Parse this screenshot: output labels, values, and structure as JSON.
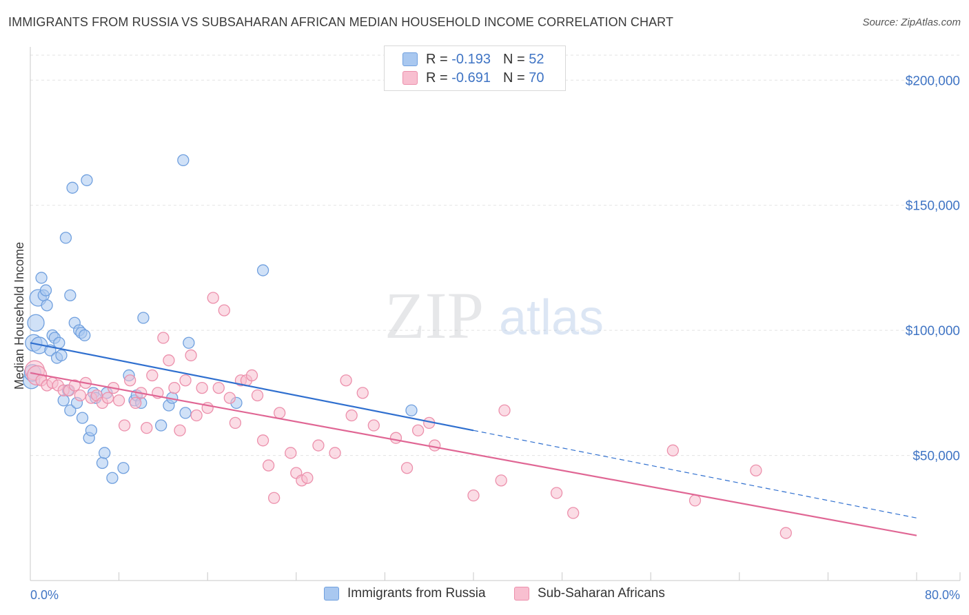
{
  "title": "IMMIGRANTS FROM RUSSIA VS SUBSAHARAN AFRICAN MEDIAN HOUSEHOLD INCOME CORRELATION CHART",
  "source": "Source: ZipAtlas.com",
  "watermark": {
    "zip": "ZIP",
    "atlas": "atlas"
  },
  "legend_top": [
    {
      "r_label": "R =",
      "r_value": "-0.193",
      "n_label": "N =",
      "n_value": "52",
      "color": "#a9c8f0",
      "border": "#6f9fde"
    },
    {
      "r_label": "R =",
      "r_value": "-0.691",
      "n_label": "N =",
      "n_value": "70",
      "color": "#f8bfd0",
      "border": "#ec8fab"
    }
  ],
  "legend_bottom": [
    {
      "label": "Immigrants from Russia",
      "color": "#a9c8f0",
      "border": "#6f9fde"
    },
    {
      "label": "Sub-Saharan Africans",
      "color": "#f8bfd0",
      "border": "#ec8fab"
    }
  ],
  "chart_data": {
    "type": "scatter",
    "xlabel": "",
    "ylabel": "Median Household Income",
    "xlim": [
      0,
      80
    ],
    "ylim": [
      0,
      210000
    ],
    "x_tick_labels": [
      "0.0%",
      "80.0%"
    ],
    "y_ticks": [
      50000,
      100000,
      150000,
      200000
    ],
    "y_tick_labels": [
      "$50,000",
      "$100,000",
      "$150,000",
      "$200,000"
    ],
    "grid": true,
    "series": [
      {
        "name": "Immigrants from Russia",
        "color": "#6f9fde",
        "fill": "#a9c8f0",
        "line_color": "#2f6fcf",
        "trend": {
          "x0": 0,
          "y0": 95000,
          "x1": 40,
          "y1": 60000,
          "dash_to_x": 80,
          "dash_to_y": 25000
        },
        "points": [
          [
            0.1,
            80000
          ],
          [
            0.3,
            95000
          ],
          [
            0.5,
            103000
          ],
          [
            0.7,
            113000
          ],
          [
            0.8,
            94000
          ],
          [
            1.0,
            121000
          ],
          [
            1.2,
            114000
          ],
          [
            1.4,
            116000
          ],
          [
            1.5,
            110000
          ],
          [
            1.8,
            92000
          ],
          [
            2.0,
            98000
          ],
          [
            2.2,
            97000
          ],
          [
            2.4,
            89000
          ],
          [
            2.6,
            95000
          ],
          [
            2.8,
            90000
          ],
          [
            3.0,
            72000
          ],
          [
            3.2,
            137000
          ],
          [
            3.4,
            76000
          ],
          [
            3.6,
            114000
          ],
          [
            3.6,
            68000
          ],
          [
            3.8,
            157000
          ],
          [
            4.0,
            103000
          ],
          [
            4.2,
            71000
          ],
          [
            4.4,
            100000
          ],
          [
            4.6,
            99000
          ],
          [
            4.7,
            65000
          ],
          [
            4.9,
            98000
          ],
          [
            5.1,
            160000
          ],
          [
            5.3,
            57000
          ],
          [
            5.5,
            60000
          ],
          [
            5.7,
            75000
          ],
          [
            5.9,
            73000
          ],
          [
            6.5,
            47000
          ],
          [
            6.7,
            51000
          ],
          [
            6.9,
            75000
          ],
          [
            7.4,
            41000
          ],
          [
            8.4,
            45000
          ],
          [
            8.9,
            82000
          ],
          [
            9.4,
            72000
          ],
          [
            9.6,
            74000
          ],
          [
            10.0,
            71000
          ],
          [
            10.2,
            105000
          ],
          [
            11.8,
            62000
          ],
          [
            12.5,
            70000
          ],
          [
            12.8,
            73000
          ],
          [
            13.8,
            168000
          ],
          [
            14.0,
            67000
          ],
          [
            14.3,
            95000
          ],
          [
            18.6,
            71000
          ],
          [
            21.0,
            124000
          ],
          [
            34.4,
            68000
          ],
          [
            0.2,
            83000
          ]
        ]
      },
      {
        "name": "Sub-Saharan Africans",
        "color": "#ec8fab",
        "fill": "#f8bfd0",
        "line_color": "#e06694",
        "trend": {
          "x0": 0,
          "y0": 83000,
          "x1": 80,
          "y1": 18000
        },
        "points": [
          [
            0.4,
            84000
          ],
          [
            0.6,
            82000
          ],
          [
            1.0,
            80000
          ],
          [
            1.5,
            78000
          ],
          [
            2.0,
            79000
          ],
          [
            2.5,
            78000
          ],
          [
            3.0,
            76000
          ],
          [
            3.5,
            76000
          ],
          [
            4.0,
            78000
          ],
          [
            4.5,
            74000
          ],
          [
            5.0,
            79000
          ],
          [
            5.5,
            73000
          ],
          [
            6.0,
            74000
          ],
          [
            6.5,
            71000
          ],
          [
            7.0,
            73000
          ],
          [
            7.5,
            77000
          ],
          [
            8.0,
            72000
          ],
          [
            8.5,
            62000
          ],
          [
            9.0,
            80000
          ],
          [
            9.5,
            71000
          ],
          [
            10.0,
            75000
          ],
          [
            10.5,
            61000
          ],
          [
            11.0,
            82000
          ],
          [
            11.5,
            75000
          ],
          [
            12.0,
            97000
          ],
          [
            12.5,
            88000
          ],
          [
            13.0,
            77000
          ],
          [
            13.5,
            60000
          ],
          [
            14.0,
            80000
          ],
          [
            14.5,
            90000
          ],
          [
            15.0,
            66000
          ],
          [
            15.5,
            77000
          ],
          [
            16.0,
            69000
          ],
          [
            16.5,
            113000
          ],
          [
            17.0,
            77000
          ],
          [
            17.5,
            108000
          ],
          [
            18.0,
            73000
          ],
          [
            18.5,
            63000
          ],
          [
            19.0,
            80000
          ],
          [
            19.5,
            80000
          ],
          [
            20.0,
            82000
          ],
          [
            20.5,
            74000
          ],
          [
            21.0,
            56000
          ],
          [
            21.5,
            46000
          ],
          [
            22.0,
            33000
          ],
          [
            22.5,
            67000
          ],
          [
            23.5,
            51000
          ],
          [
            24.0,
            43000
          ],
          [
            24.5,
            40000
          ],
          [
            25.0,
            41000
          ],
          [
            26.0,
            54000
          ],
          [
            27.5,
            51000
          ],
          [
            28.5,
            80000
          ],
          [
            29.0,
            66000
          ],
          [
            30.0,
            75000
          ],
          [
            31.0,
            62000
          ],
          [
            33.0,
            57000
          ],
          [
            34.0,
            45000
          ],
          [
            35.0,
            60000
          ],
          [
            36.0,
            63000
          ],
          [
            36.5,
            54000
          ],
          [
            40.0,
            34000
          ],
          [
            42.5,
            40000
          ],
          [
            42.8,
            68000
          ],
          [
            47.5,
            35000
          ],
          [
            49.0,
            27000
          ],
          [
            58.0,
            52000
          ],
          [
            60.0,
            32000
          ],
          [
            65.5,
            44000
          ],
          [
            68.2,
            19000
          ]
        ]
      }
    ]
  }
}
